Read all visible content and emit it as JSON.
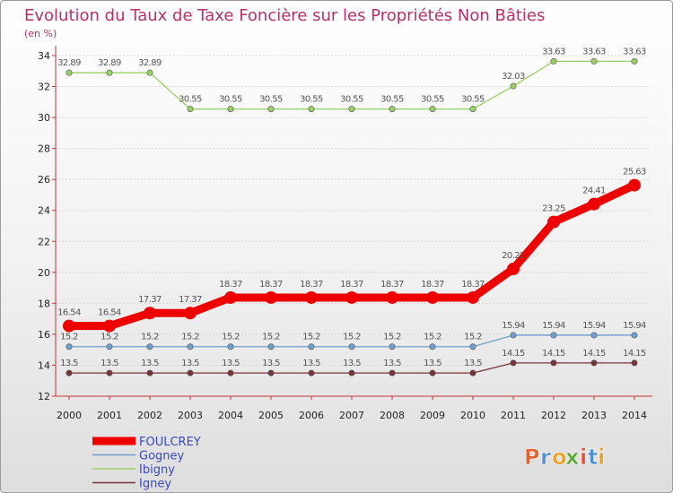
{
  "chart_data": {
    "type": "line",
    "title": "Evolution du Taux de Taxe Foncière sur les Propriétés Non Bâties",
    "ylabel": "(en %)",
    "xlabel": "",
    "ylim": [
      12,
      34
    ],
    "yticks": [
      12,
      14,
      16,
      18,
      20,
      22,
      24,
      26,
      28,
      30,
      32,
      34
    ],
    "categories": [
      "2000",
      "2001",
      "2002",
      "2003",
      "2004",
      "2005",
      "2006",
      "2007",
      "2008",
      "2009",
      "2010",
      "2011",
      "2012",
      "2013",
      "2014"
    ],
    "series": [
      {
        "name": "FOULCREY",
        "color": "#ee0000",
        "emphasis": true,
        "values": [
          16.54,
          16.54,
          17.37,
          17.37,
          18.37,
          18.37,
          18.37,
          18.37,
          18.37,
          18.37,
          18.37,
          20.22,
          23.25,
          24.41,
          25.63
        ],
        "labels": [
          "16.54",
          "16.54",
          "17.37",
          "17.37",
          "18.37",
          "18.37",
          "18.37",
          "18.37",
          "18.37",
          "18.37",
          "18.37",
          "20.22",
          "23.25",
          "24.41",
          "25.63"
        ]
      },
      {
        "name": "Gogney",
        "color": "#6f9fcc",
        "values": [
          15.2,
          15.2,
          15.2,
          15.2,
          15.2,
          15.2,
          15.2,
          15.2,
          15.2,
          15.2,
          15.2,
          15.94,
          15.94,
          15.94,
          15.94
        ],
        "labels": [
          "15.2",
          "15.2",
          "15.2",
          "15.2",
          "15.2",
          "15.2",
          "15.2",
          "15.2",
          "15.2",
          "15.2",
          "15.2",
          "15.94",
          "15.94",
          "15.94",
          "15.94"
        ]
      },
      {
        "name": "Ibigny",
        "color": "#99d066",
        "values": [
          32.89,
          32.89,
          32.89,
          30.55,
          30.55,
          30.55,
          30.55,
          30.55,
          30.55,
          30.55,
          30.55,
          32.03,
          33.63,
          33.63,
          33.63
        ],
        "labels": [
          "32.89",
          "32.89",
          "32.89",
          "30.55",
          "30.55",
          "30.55",
          "30.55",
          "30.55",
          "30.55",
          "30.55",
          "30.55",
          "32.03",
          "33.63",
          "33.63",
          "33.63"
        ]
      },
      {
        "name": "Igney",
        "color": "#7a3338",
        "values": [
          13.5,
          13.5,
          13.5,
          13.5,
          13.5,
          13.5,
          13.5,
          13.5,
          13.5,
          13.5,
          13.5,
          14.15,
          14.15,
          14.15,
          14.15
        ],
        "labels": [
          "13.5",
          "13.5",
          "13.5",
          "13.5",
          "13.5",
          "13.5",
          "13.5",
          "13.5",
          "13.5",
          "13.5",
          "13.5",
          "14.15",
          "14.15",
          "14.15",
          "14.15"
        ]
      }
    ]
  },
  "brand": {
    "letters": [
      "P",
      "r",
      "o",
      "x",
      "i",
      "t",
      "i"
    ],
    "colors": [
      "#e8622a",
      "#4f8fd6",
      "#f0a020",
      "#5aa838",
      "#e84a3a",
      "#4f8fd6",
      "#f0a020"
    ]
  }
}
